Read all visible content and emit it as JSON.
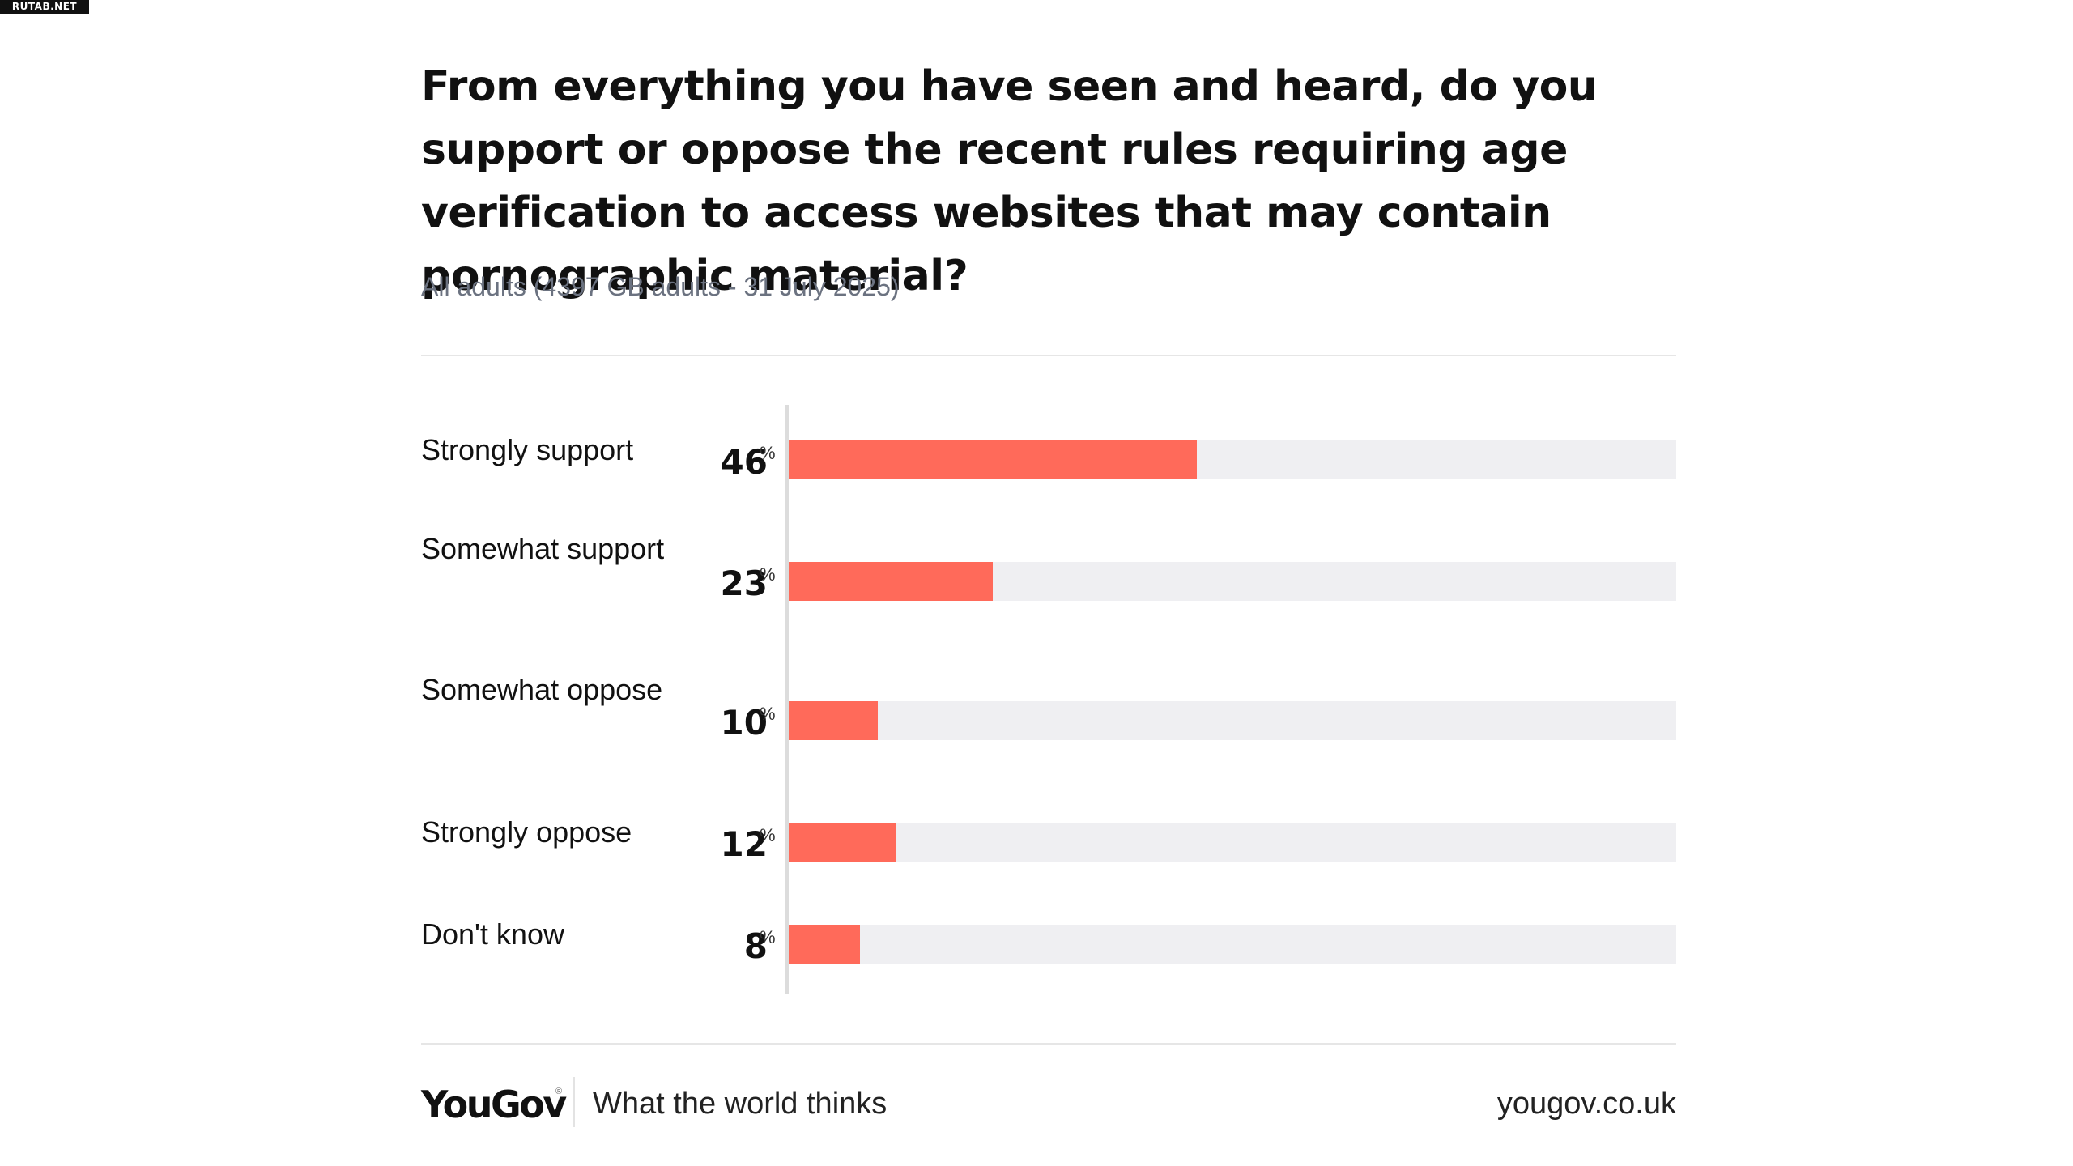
{
  "watermark": "RUTAB.NET",
  "chart_data": {
    "type": "bar",
    "orientation": "horizontal",
    "title": "From everything you have seen and heard, do you support or oppose the recent rules requiring age verification to access websites that may contain pornographic material?",
    "subtitle": "All adults (4397 GB adults - 31 July 2025)",
    "categories": [
      "Strongly support",
      "Somewhat support",
      "Somewhat oppose",
      "Strongly oppose",
      "Don't know"
    ],
    "values": [
      46,
      23,
      10,
      12,
      8
    ],
    "value_suffix": "%",
    "xlim": [
      0,
      100
    ],
    "bar_color": "#ff6a5a",
    "track_color": "#efeff2",
    "grid": false,
    "legend": "none"
  },
  "footer": {
    "brand": "YouGov",
    "brand_mark": "®",
    "tagline": "What the world thinks",
    "site": "yougov.co.uk"
  }
}
